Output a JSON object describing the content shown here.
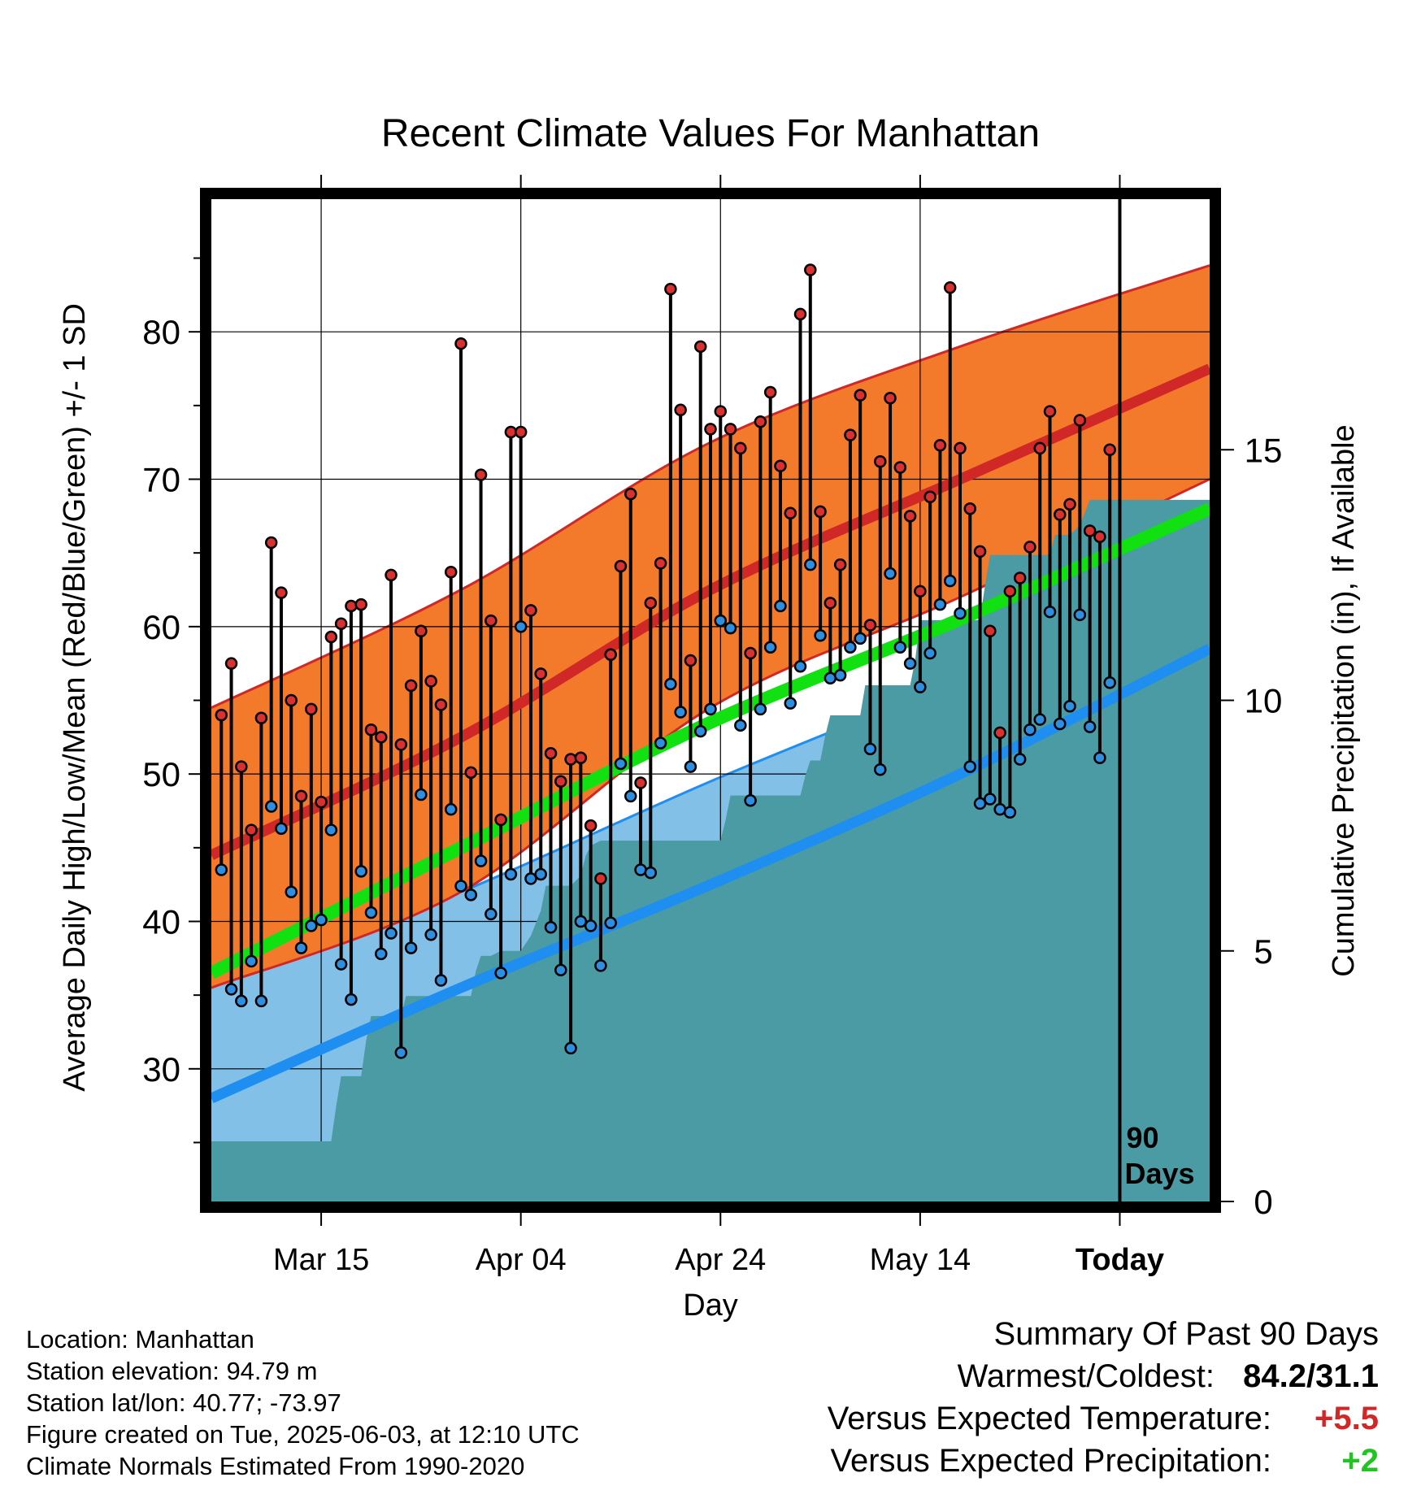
{
  "chart_data": {
    "type": "line",
    "title": "Recent Climate Values For Manhattan",
    "xlabel": "Day",
    "ylabel_left": "Average Daily High/Low/Mean (Red/Blue/Green) +/- 1 SD",
    "ylabel_right": "Cumulative Precipitation (in), If Available",
    "x_tick_labels": [
      "Mar 15",
      "Apr 04",
      "Apr 24",
      "May 14",
      "Today"
    ],
    "x_tick_days": [
      11,
      31,
      51,
      71,
      91
    ],
    "x_range_days": [
      0,
      100
    ],
    "ylim": [
      21,
      89
    ],
    "y_ticks": [
      30,
      40,
      50,
      60,
      70,
      80
    ],
    "y2lim": [
      0,
      20
    ],
    "y2_ticks": [
      0,
      5,
      10,
      15
    ],
    "period_label": "90 Days",
    "normal_high": {
      "x": [
        0,
        25,
        50,
        75,
        100
      ],
      "mean": [
        44.5,
        52.5,
        62.5,
        70.0,
        77.5
      ],
      "minus_1sd": [
        35.5,
        42.0,
        54.5,
        62.0,
        70.0
      ],
      "plus_1sd": [
        54.5,
        62.5,
        72.5,
        79.0,
        84.5
      ]
    },
    "normal_low": {
      "x": [
        0,
        25,
        50,
        75,
        100
      ],
      "mean": [
        28.0,
        35.5,
        42.5,
        50.0,
        58.5
      ],
      "minus_1sd": [
        20.5,
        27.5,
        35.5,
        43.0,
        52.5
      ],
      "plus_1sd": [
        35.5,
        42.0,
        49.5,
        56.5,
        64.2
      ]
    },
    "normal_mean": {
      "x": [
        0,
        25,
        50,
        75,
        100
      ],
      "values": [
        36.5,
        45.0,
        53.5,
        60.5,
        68.0
      ]
    },
    "daily": {
      "day": [
        1,
        2,
        3,
        4,
        5,
        6,
        7,
        8,
        9,
        10,
        11,
        12,
        13,
        14,
        15,
        16,
        17,
        18,
        19,
        20,
        21,
        22,
        23,
        24,
        25,
        26,
        27,
        28,
        29,
        30,
        31,
        32,
        33,
        34,
        35,
        36,
        37,
        38,
        39,
        40,
        41,
        42,
        43,
        44,
        45,
        46,
        47,
        48,
        49,
        50,
        51,
        52,
        53,
        54,
        55,
        56,
        57,
        58,
        59,
        60,
        61,
        62,
        63,
        64,
        65,
        66,
        67,
        68,
        69,
        70,
        71,
        72,
        73,
        74,
        75,
        76,
        77,
        78,
        79,
        80,
        81,
        82,
        83,
        84,
        85,
        86,
        87,
        88,
        89,
        90
      ],
      "high": [
        54.0,
        57.5,
        50.5,
        46.2,
        53.8,
        65.7,
        62.3,
        55.0,
        48.5,
        54.4,
        48.1,
        59.3,
        60.2,
        61.4,
        61.5,
        53.0,
        52.5,
        63.5,
        52.0,
        56.0,
        59.7,
        56.3,
        54.7,
        63.7,
        79.2,
        50.1,
        70.3,
        60.4,
        46.9,
        73.2,
        73.2,
        61.1,
        56.8,
        51.4,
        49.5,
        51.0,
        51.1,
        46.5,
        42.9,
        58.1,
        64.1,
        69.0,
        49.4,
        61.6,
        64.3,
        82.9,
        74.7,
        57.7,
        79.0,
        73.4,
        74.6,
        73.4,
        72.1,
        58.2,
        73.9,
        75.9,
        70.9,
        67.7,
        81.2,
        84.2,
        67.8,
        61.6,
        64.2,
        73.0,
        75.7,
        60.1,
        71.2,
        75.5,
        70.8,
        67.5,
        62.4,
        68.8,
        72.3,
        83.0,
        72.1,
        68.0,
        65.1,
        59.7,
        52.8,
        62.4,
        63.3,
        65.4,
        72.1,
        74.6,
        67.6,
        68.3,
        74.0,
        66.5,
        66.1,
        72.0
      ],
      "low": [
        43.5,
        35.4,
        34.6,
        37.3,
        34.6,
        47.8,
        46.3,
        42.0,
        38.2,
        39.7,
        40.1,
        46.2,
        37.1,
        34.7,
        43.4,
        40.6,
        37.8,
        39.2,
        31.1,
        38.2,
        48.6,
        39.1,
        36.0,
        47.6,
        42.4,
        41.8,
        44.1,
        40.5,
        36.5,
        43.2,
        60.0,
        42.9,
        43.2,
        39.6,
        36.7,
        31.4,
        40.0,
        39.7,
        37.0,
        39.9,
        50.7,
        48.5,
        43.5,
        43.3,
        52.1,
        56.1,
        54.2,
        50.5,
        52.9,
        54.4,
        60.4,
        59.9,
        53.3,
        48.2,
        54.4,
        58.6,
        61.4,
        54.8,
        57.3,
        64.2,
        59.4,
        56.5,
        56.7,
        58.6,
        59.2,
        51.7,
        50.3,
        63.6,
        58.6,
        57.5,
        55.9,
        58.2,
        61.5,
        63.1,
        60.9,
        50.5,
        48.0,
        48.3,
        47.6,
        47.4,
        51.0,
        53.0,
        53.7,
        61.0,
        53.4,
        54.6,
        60.8,
        53.2,
        51.1,
        56.2
      ]
    },
    "precip_cumulative": {
      "x": [
        0,
        12,
        12.5,
        13,
        14,
        15,
        15.5,
        16,
        17,
        18,
        19,
        19.5,
        20,
        21,
        22,
        23,
        24,
        25,
        26,
        26.5,
        27,
        28,
        29,
        30,
        31,
        32,
        33,
        33.5,
        34,
        35,
        36,
        37,
        37.5,
        38,
        39,
        40,
        41,
        42,
        43,
        44,
        45,
        46,
        47,
        48,
        49,
        50,
        51,
        51.5,
        52,
        53,
        54,
        55,
        56,
        57,
        58,
        59,
        59.5,
        60,
        61,
        61.5,
        62,
        63,
        64,
        65,
        65.5,
        66,
        67,
        68,
        69,
        70,
        70.5,
        71,
        72,
        73,
        74,
        75,
        76,
        77,
        77.5,
        78,
        79,
        80,
        81,
        82,
        83,
        84,
        84.5,
        85,
        86,
        87,
        88,
        88.5,
        89,
        90,
        91,
        92,
        93,
        94,
        95,
        96,
        97,
        98,
        99,
        100
      ],
      "values": [
        1.2,
        1.2,
        1.9,
        2.5,
        2.5,
        2.5,
        3.2,
        3.7,
        3.7,
        3.7,
        3.7,
        4.1,
        4.1,
        4.1,
        4.1,
        4.1,
        4.1,
        4.1,
        4.1,
        4.6,
        4.9,
        4.9,
        5.0,
        5.0,
        5.0,
        5.3,
        5.8,
        6.3,
        6.3,
        6.3,
        6.3,
        6.5,
        6.9,
        7.1,
        7.2,
        7.2,
        7.2,
        7.2,
        7.2,
        7.2,
        7.2,
        7.2,
        7.2,
        7.2,
        7.2,
        7.2,
        7.2,
        7.6,
        8.1,
        8.1,
        8.1,
        8.1,
        8.1,
        8.1,
        8.1,
        8.1,
        8.5,
        8.8,
        8.8,
        9.3,
        9.7,
        9.7,
        9.7,
        9.7,
        10.3,
        10.3,
        10.3,
        10.3,
        10.3,
        10.3,
        10.8,
        11.6,
        11.6,
        11.6,
        11.6,
        11.6,
        11.6,
        11.6,
        12.3,
        12.9,
        12.9,
        12.9,
        12.9,
        12.9,
        12.9,
        12.9,
        13.3,
        13.3,
        13.3,
        13.5,
        14.0,
        14.0,
        14.0,
        14.0,
        14.0,
        14.0,
        14.0,
        14.0,
        14.0,
        14.0,
        14.0,
        14.0,
        14.0,
        14.0
      ]
    },
    "colors": {
      "high_band": "#f47a2b",
      "high_line": "#d02727",
      "low_band": "#82c0e8",
      "low_line": "#1e8ef0",
      "mean_line": "#11e011",
      "precip_fill": "#4a9ba4",
      "high_dot": "#d93030",
      "low_dot": "#2e8fe0",
      "summary_temp": "#d02727",
      "summary_precip": "#22c422"
    },
    "grid": true,
    "legend": "none"
  },
  "info": {
    "location": "Location: Manhattan",
    "elevation": "Station elevation: 94.79 m",
    "latlon": "Station lat/lon: 40.77; -73.97",
    "created": "Figure created on Tue, 2025-06-03, at 12:10 UTC",
    "normals": "Climate Normals Estimated From 1990-2020"
  },
  "summary": {
    "heading": "Summary Of Past 90 Days",
    "warmest_coldest_label": "Warmest/Coldest:",
    "warmest_coldest_value": "84.2/31.1",
    "temp_label": "Versus Expected Temperature:",
    "temp_value": "+5.5",
    "precip_label": "Versus Expected Precipitation:",
    "precip_value": "+2"
  }
}
